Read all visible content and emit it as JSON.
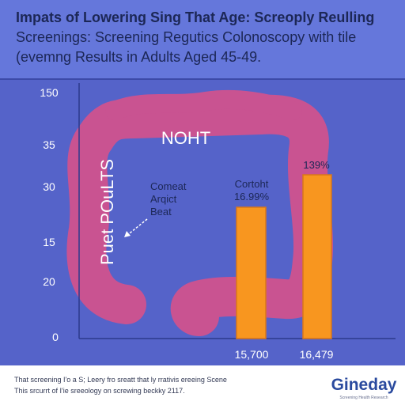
{
  "header": {
    "title_lines": [
      "Impats of Lowering Sing That Age: Screoply Reulling",
      "Screenings: Screening Regutics Colonoscopy with tile",
      "(evemng Results in Adults Aged 45-49."
    ]
  },
  "axis": {
    "labels": [
      "150",
      "35",
      "30",
      "15",
      "20",
      "0"
    ]
  },
  "illustration": {
    "title": "NOHT",
    "side_label": "Puet POuLTS",
    "callout_lines": [
      "Comeat",
      "Arqict",
      "Beat"
    ]
  },
  "bars": [
    {
      "top_label": "Cortoht",
      "value_label": "16.99%",
      "category": "15,700"
    },
    {
      "value_label": "139%",
      "category": "16,479"
    }
  ],
  "footer": {
    "lines": [
      "That screening I'o a S; Leery fro sreatt that ly rrativis ereeing Scene",
      "This srcurrt of I'ie sreeology on screwing beckky 2117."
    ]
  },
  "logo": {
    "name": "Gineday",
    "tagline": "Screening Health Research"
  }
}
